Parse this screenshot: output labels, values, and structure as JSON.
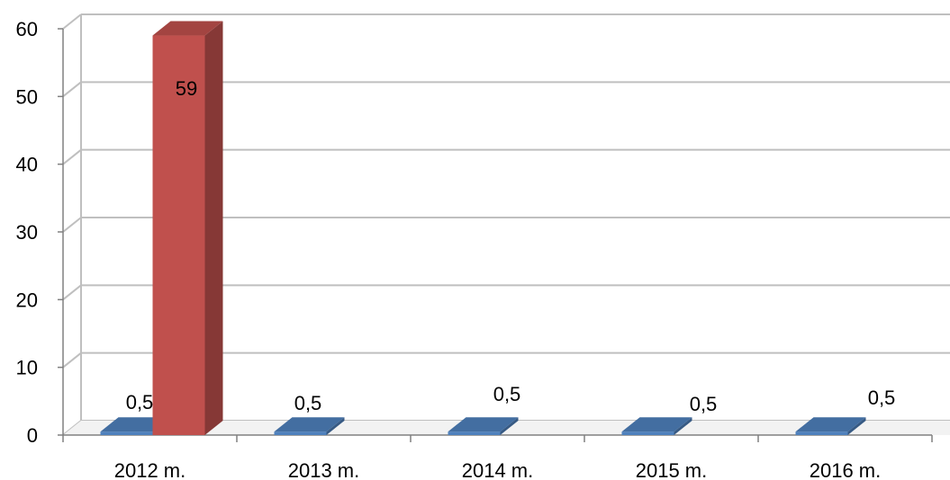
{
  "chart_data": {
    "type": "bar",
    "three_d": true,
    "categories": [
      "2012 m.",
      "2013 m.",
      "2014 m.",
      "2015 m.",
      "2016 m."
    ],
    "series": [
      {
        "values": [
          0.5,
          0.5,
          0.5,
          0.5,
          0.5
        ],
        "labels": [
          "0,5",
          "0,5",
          "0,5",
          "0,5",
          "0,5"
        ],
        "color": "#4F81BD"
      },
      {
        "values": [
          59,
          null,
          null,
          null,
          null
        ],
        "labels": [
          "59",
          null,
          null,
          null,
          null
        ],
        "color": "#C0504D"
      }
    ],
    "y_ticks": [
      "0",
      "10",
      "20",
      "30",
      "40",
      "50",
      "60"
    ],
    "ylim": [
      0,
      60
    ],
    "grid": true,
    "legend": "none",
    "title": "",
    "xlabel": "",
    "ylabel": ""
  }
}
